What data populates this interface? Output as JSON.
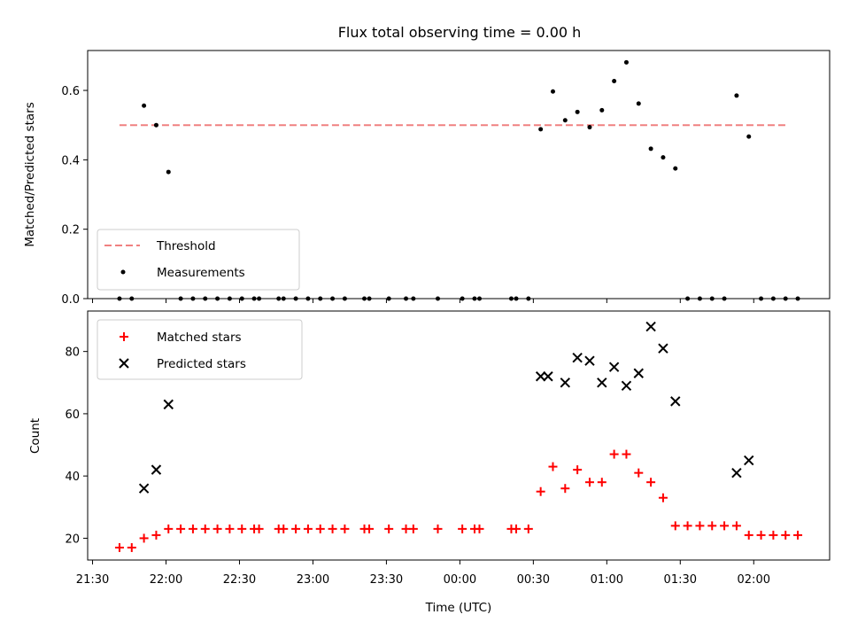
{
  "chart_data": {
    "title": "Flux total observing time = 0.00 h",
    "xlabel": "Time (UTC)",
    "x_ticks": [
      "21:30",
      "22:00",
      "22:30",
      "23:00",
      "23:30",
      "00:00",
      "00:30",
      "01:00",
      "01:30",
      "02:00"
    ],
    "xlim": [
      "21:28",
      "02:31"
    ],
    "top": {
      "type": "scatter",
      "ylabel": "Matched/Predicted stars",
      "ylim": [
        0,
        0.715
      ],
      "y_ticks": [
        "0.0",
        "0.2",
        "0.4",
        "0.6"
      ],
      "legend": {
        "position": "lower-left",
        "threshold_label": "Threshold",
        "measurements_label": "Measurements"
      },
      "threshold": {
        "value": 0.5,
        "from": "21:41",
        "to": "02:14",
        "color": "#f08080"
      },
      "points": [
        [
          "21:41",
          0
        ],
        [
          "21:46",
          0
        ],
        [
          "21:51",
          0.556
        ],
        [
          "21:56",
          0.5
        ],
        [
          "22:01",
          0.365
        ],
        [
          "22:06",
          0
        ],
        [
          "22:11",
          0
        ],
        [
          "22:16",
          0
        ],
        [
          "22:21",
          0
        ],
        [
          "22:26",
          0
        ],
        [
          "22:31",
          0
        ],
        [
          "22:36",
          0
        ],
        [
          "22:38",
          0
        ],
        [
          "22:46",
          0
        ],
        [
          "22:48",
          0
        ],
        [
          "22:53",
          0
        ],
        [
          "22:58",
          0
        ],
        [
          "23:03",
          0
        ],
        [
          "23:08",
          0
        ],
        [
          "23:13",
          0
        ],
        [
          "23:21",
          0
        ],
        [
          "23:23",
          0
        ],
        [
          "23:31",
          0
        ],
        [
          "23:38",
          0
        ],
        [
          "23:41",
          0
        ],
        [
          "23:51",
          0
        ],
        [
          "24:01",
          0
        ],
        [
          "24:06",
          0
        ],
        [
          "24:08",
          0
        ],
        [
          "24:21",
          0
        ],
        [
          "24:23",
          0
        ],
        [
          "24:28",
          0
        ],
        [
          "24:33",
          0.488
        ],
        [
          "24:38",
          0.597
        ],
        [
          "24:43",
          0.514
        ],
        [
          "24:48",
          0.538
        ],
        [
          "24:53",
          0.494
        ],
        [
          "24:58",
          0.543
        ],
        [
          "25:03",
          0.627
        ],
        [
          "25:08",
          0.681
        ],
        [
          "25:13",
          0.562
        ],
        [
          "25:18",
          0.432
        ],
        [
          "25:23",
          0.407
        ],
        [
          "25:28",
          0.375
        ],
        [
          "25:33",
          0
        ],
        [
          "25:38",
          0
        ],
        [
          "25:43",
          0
        ],
        [
          "25:48",
          0
        ],
        [
          "25:53",
          0.585
        ],
        [
          "25:58",
          0.467
        ],
        [
          "26:03",
          0
        ],
        [
          "26:08",
          0
        ],
        [
          "26:13",
          0
        ],
        [
          "26:18",
          0
        ]
      ]
    },
    "bottom": {
      "type": "scatter",
      "ylabel": "Count",
      "ylim": [
        13,
        93
      ],
      "y_ticks": [
        "20",
        "40",
        "60",
        "80"
      ],
      "legend": {
        "position": "upper-left",
        "matched_label": "Matched stars",
        "predicted_label": "Predicted stars"
      },
      "matched": {
        "color": "#ff0000",
        "points": [
          [
            "21:41",
            17
          ],
          [
            "21:46",
            17
          ],
          [
            "21:51",
            20
          ],
          [
            "21:56",
            21
          ],
          [
            "22:01",
            23
          ],
          [
            "22:06",
            23
          ],
          [
            "22:11",
            23
          ],
          [
            "22:16",
            23
          ],
          [
            "22:21",
            23
          ],
          [
            "22:26",
            23
          ],
          [
            "22:31",
            23
          ],
          [
            "22:36",
            23
          ],
          [
            "22:38",
            23
          ],
          [
            "22:46",
            23
          ],
          [
            "22:48",
            23
          ],
          [
            "22:53",
            23
          ],
          [
            "22:58",
            23
          ],
          [
            "23:03",
            23
          ],
          [
            "23:08",
            23
          ],
          [
            "23:13",
            23
          ],
          [
            "23:21",
            23
          ],
          [
            "23:23",
            23
          ],
          [
            "23:31",
            23
          ],
          [
            "23:38",
            23
          ],
          [
            "23:41",
            23
          ],
          [
            "23:51",
            23
          ],
          [
            "24:01",
            23
          ],
          [
            "24:06",
            23
          ],
          [
            "24:08",
            23
          ],
          [
            "24:21",
            23
          ],
          [
            "24:23",
            23
          ],
          [
            "24:28",
            23
          ],
          [
            "24:33",
            35
          ],
          [
            "24:38",
            43
          ],
          [
            "24:43",
            36
          ],
          [
            "24:48",
            42
          ],
          [
            "24:53",
            38
          ],
          [
            "24:58",
            38
          ],
          [
            "25:03",
            47
          ],
          [
            "25:08",
            47
          ],
          [
            "25:13",
            41
          ],
          [
            "25:18",
            38
          ],
          [
            "25:23",
            33
          ],
          [
            "25:28",
            24
          ],
          [
            "25:33",
            24
          ],
          [
            "25:38",
            24
          ],
          [
            "25:43",
            24
          ],
          [
            "25:48",
            24
          ],
          [
            "25:53",
            24
          ],
          [
            "25:58",
            21
          ],
          [
            "26:03",
            21
          ],
          [
            "26:08",
            21
          ],
          [
            "26:13",
            21
          ],
          [
            "26:18",
            21
          ]
        ]
      },
      "predicted": {
        "color": "#000000",
        "points": [
          [
            "21:51",
            36
          ],
          [
            "21:56",
            42
          ],
          [
            "22:01",
            63
          ],
          [
            "24:33",
            72
          ],
          [
            "24:36",
            72
          ],
          [
            "24:43",
            70
          ],
          [
            "24:48",
            78
          ],
          [
            "24:53",
            77
          ],
          [
            "24:58",
            70
          ],
          [
            "25:03",
            75
          ],
          [
            "25:08",
            69
          ],
          [
            "25:13",
            73
          ],
          [
            "25:18",
            88
          ],
          [
            "25:23",
            81
          ],
          [
            "25:28",
            64
          ],
          [
            "25:53",
            41
          ],
          [
            "25:58",
            45
          ]
        ]
      }
    }
  }
}
